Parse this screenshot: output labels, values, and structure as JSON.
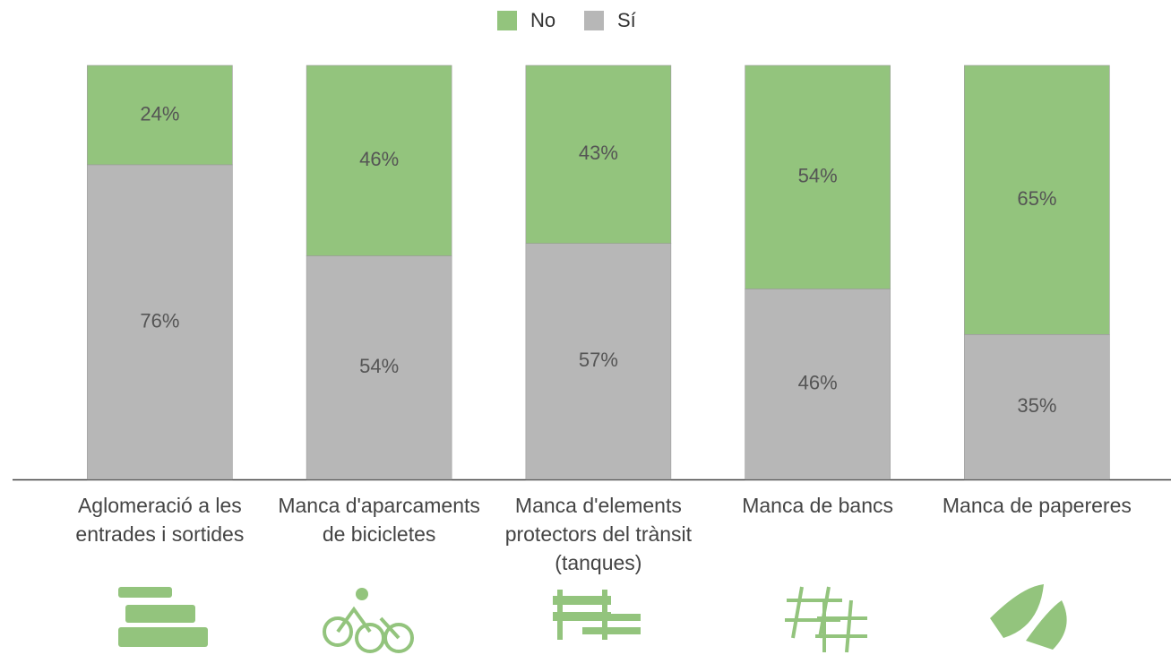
{
  "chart_data": {
    "type": "stacked_bar",
    "categories": [
      "Aglomeració a les entrades i sortides",
      "Manca d'aparcaments de bicicletes",
      "Manca d'elements protectors del trànsit (tanques)",
      "Manca de bancs",
      "Manca de papereres"
    ],
    "series": [
      {
        "name": "No",
        "color": "#93c47d",
        "values": [
          24,
          46,
          43,
          54,
          65
        ],
        "value_labels": [
          "24%",
          "46%",
          "43%",
          "54%",
          "65%"
        ]
      },
      {
        "name": "Sí",
        "color": "#b7b7b7",
        "values": [
          76,
          54,
          57,
          46,
          35
        ],
        "value_labels": [
          "76%",
          "54%",
          "57%",
          "46%",
          "35%"
        ]
      }
    ],
    "legend": "top"
  }
}
